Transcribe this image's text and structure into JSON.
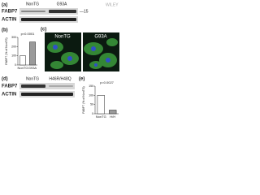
{
  "watermark": "WILEY",
  "panel_a": {
    "label": "(a)",
    "lanes": [
      "NonTG",
      "G93A"
    ],
    "rows": [
      "FABP7",
      "ACTIN"
    ],
    "marker": "—15"
  },
  "panel_c": {
    "label": "(c)",
    "images": [
      "NonTG",
      "G93A"
    ]
  },
  "panel_d": {
    "label": "(d)",
    "lanes": [
      "NonTG",
      "H46R/H48Q"
    ],
    "rows": [
      "FABP7",
      "ACTIN"
    ]
  },
  "chart_data": [
    {
      "type": "bar",
      "panel": "(b)",
      "annotation": "p<0.0001",
      "ylabel": "FABP7 (% of NonTG)",
      "categories": [
        "NonTG",
        "G93A"
      ],
      "values": [
        100,
        250
      ],
      "colors": [
        "#ffffff",
        "#9a9a9a"
      ],
      "ylim": [
        0,
        300
      ],
      "yticks": [
        0,
        100,
        200,
        300
      ]
    },
    {
      "type": "bar",
      "panel": "(e)",
      "annotation": "p=0.0027",
      "ylabel": "FABP7 (% of NonTG)",
      "categories": [
        "NonTG",
        "H/H"
      ],
      "values": [
        100,
        20
      ],
      "colors": [
        "#ffffff",
        "#9a9a9a"
      ],
      "ylim": [
        0,
        150
      ],
      "yticks": [
        0,
        50,
        100,
        150
      ]
    }
  ]
}
